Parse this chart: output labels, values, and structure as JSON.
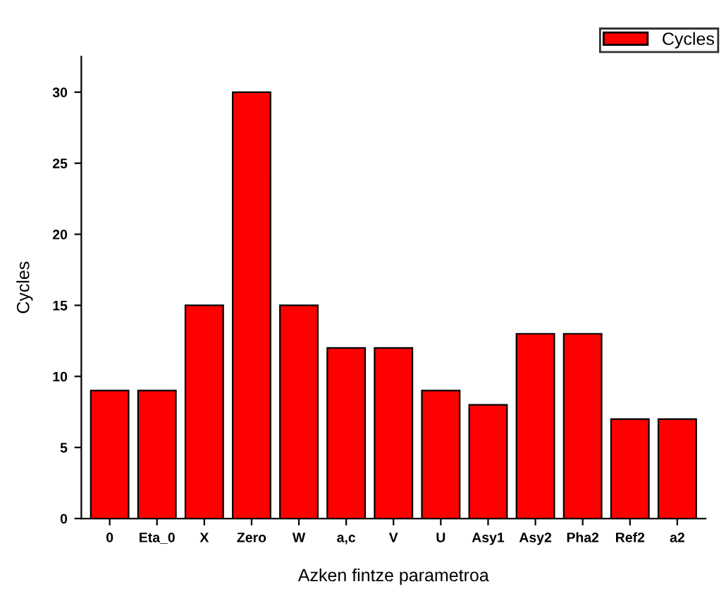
{
  "chart_data": {
    "type": "bar",
    "xlabel": "Azken fintze parametroa",
    "ylabel": "Cycles",
    "categories": [
      "0",
      "Eta_0",
      "X",
      "Zero",
      "W",
      "a,c",
      "V",
      "U",
      "Asy1",
      "Asy2",
      "Pha2",
      "Ref2",
      "a2"
    ],
    "series": [
      {
        "name": "Cycles",
        "color": "#ff0000",
        "values": [
          9,
          9,
          15,
          30,
          15,
          12,
          12,
          9,
          8,
          13,
          13,
          7,
          7
        ]
      }
    ],
    "ylim": [
      0,
      32.5
    ],
    "yticks": [
      0,
      5,
      10,
      15,
      20,
      25,
      30
    ],
    "grid": false,
    "legend": "top right"
  }
}
